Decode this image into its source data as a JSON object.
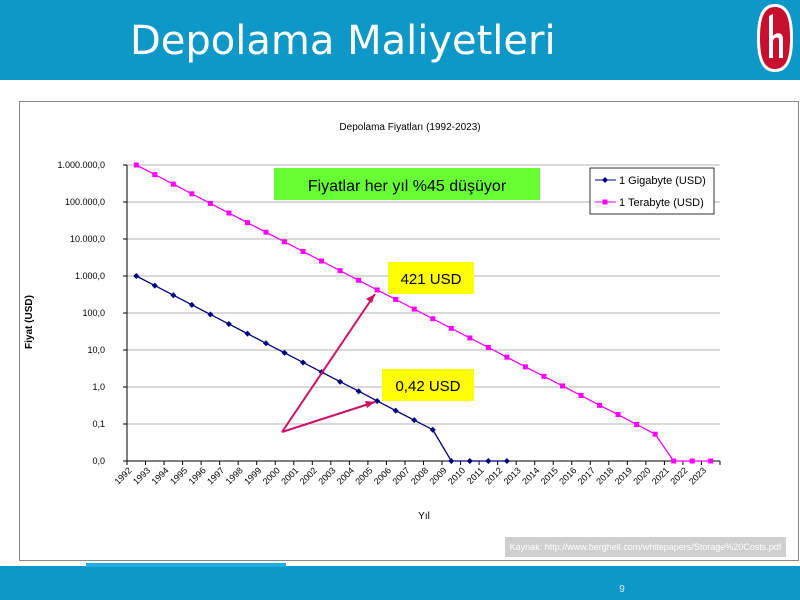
{
  "slide": {
    "title": "Depolama Maliyetleri",
    "page_number": "9",
    "source_note": "Kaynak: http://www.berghell.com/whitepapers/Storage%20Costs.pdf",
    "colors": {
      "bar": "#0e98c8",
      "logo": "#c8102e"
    }
  },
  "chart_data": {
    "type": "line",
    "title": "Depolama Fiyatları (1992-2023)",
    "xlabel": "Yıl",
    "ylabel": "Fiyat (USD)",
    "x": [
      "1992",
      "1993",
      "1994",
      "1995",
      "1996",
      "1997",
      "1998",
      "1999",
      "2000",
      "2001",
      "2002",
      "2003",
      "2004",
      "2005",
      "2006",
      "2007",
      "2008",
      "2009",
      "2010",
      "2011",
      "2012",
      "2013",
      "2014",
      "2015",
      "2016",
      "2017",
      "2018",
      "2019",
      "2020",
      "2021",
      "2022",
      "2023"
    ],
    "y_tick_labels": [
      "0,0",
      "0,1",
      "1,0",
      "10,0",
      "100,0",
      "1.000,0",
      "10.000,0",
      "100.000,0",
      "1.000.000,0"
    ],
    "y_scale": "log",
    "grid": true,
    "legend": "top-right",
    "series": [
      {
        "name": "1 Gigabyte (USD)",
        "color": "#000080",
        "marker": "diamond",
        "values": [
          1000,
          550,
          302.5,
          166.4,
          91.5,
          50.3,
          27.7,
          15.2,
          8.4,
          4.6,
          2.53,
          1.39,
          0.77,
          0.42,
          0.23,
          0.127,
          0.07,
          0.038,
          0.021,
          0.0,
          0.0,
          null,
          null,
          null,
          null,
          null,
          null,
          null,
          null,
          null,
          null,
          null
        ]
      },
      {
        "name": "1 Terabyte (USD)",
        "color": "#ff00ff",
        "marker": "square",
        "values": [
          1000000,
          550000,
          302500,
          166375,
          91506,
          50328,
          27681,
          15224,
          8373,
          4605,
          2533,
          1393,
          766,
          421,
          232,
          127.5,
          70.1,
          38.6,
          21.2,
          11.7,
          6.4,
          3.5,
          1.94,
          1.07,
          0.59,
          0.32,
          0.18,
          0.097,
          0.053,
          0.029,
          0.016,
          0.0
        ]
      }
    ],
    "annotations": {
      "headline": "Fiyatlar her yıl %45 düşüyor",
      "tb_callout": "421 USD",
      "gb_callout": "0,42 USD",
      "headline_color": "#66ff33",
      "callout_color": "#ffff00"
    }
  }
}
